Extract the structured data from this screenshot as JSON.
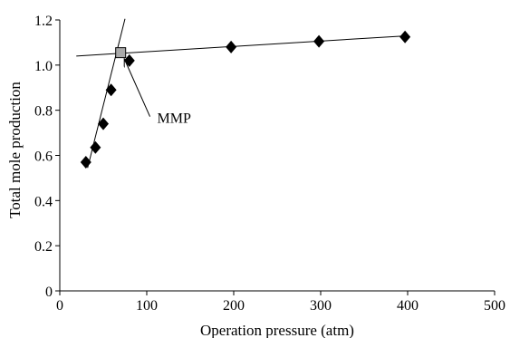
{
  "chart_data": {
    "type": "scatter",
    "title": "",
    "xlabel": "Operation pressure (atm)",
    "ylabel": "Total mole production",
    "xlim": [
      0,
      500
    ],
    "ylim": [
      0,
      1.2
    ],
    "x_ticks": [
      0,
      100,
      200,
      300,
      400,
      500
    ],
    "y_ticks": [
      0,
      0.2,
      0.4,
      0.6,
      0.8,
      1.0,
      1.2
    ],
    "x_tick_labels": [
      "0",
      "100",
      "200",
      "300",
      "400",
      "500"
    ],
    "y_tick_labels": [
      "0",
      "0.2",
      "0.4",
      "0.6",
      "0.8",
      "1.0",
      "1.2"
    ],
    "grid": false,
    "series": [
      {
        "marker": "diamond",
        "color": "#000000",
        "points": [
          {
            "x": 30,
            "y": 0.57
          },
          {
            "x": 41,
            "y": 0.635
          },
          {
            "x": 50,
            "y": 0.74
          },
          {
            "x": 59,
            "y": 0.89
          },
          {
            "x": 80,
            "y": 1.02
          },
          {
            "x": 197,
            "y": 1.08
          },
          {
            "x": 298,
            "y": 1.105
          },
          {
            "x": 397,
            "y": 1.125
          }
        ]
      }
    ],
    "trend_lines": [
      {
        "x": [
          19,
          400
        ],
        "y": [
          1.04,
          1.13
        ]
      },
      {
        "x": [
          32,
          75
        ],
        "y": [
          0.545,
          1.205
        ]
      }
    ],
    "mmp_point": {
      "x": 70,
      "y": 1.055,
      "marker": "square",
      "color": "#a9a9a9"
    },
    "annotation": {
      "text": "MMP",
      "from": {
        "x": 112,
        "y": 0.78
      },
      "to": {
        "x": 70,
        "y": 1.04
      }
    }
  }
}
